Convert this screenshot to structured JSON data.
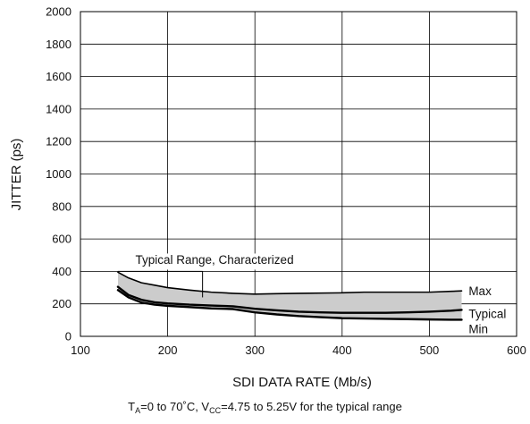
{
  "chart_data": {
    "type": "line",
    "xlabel": "SDI DATA RATE (Mb/s)",
    "ylabel": "JITTER (ps)",
    "xlim": [
      100,
      600
    ],
    "ylim": [
      0,
      2000
    ],
    "x_ticks": [
      "100",
      "200",
      "300",
      "400",
      "500",
      "600"
    ],
    "y_ticks": [
      "0",
      "200",
      "400",
      "600",
      "800",
      "1000",
      "1200",
      "1400",
      "1600",
      "1800",
      "2000"
    ],
    "grid": true,
    "band_annotation": "Typical Range, Characterized",
    "band_fill": "#cccccc",
    "series": [
      {
        "name": "Max",
        "x": [
          143,
          155,
          170,
          185,
          200,
          225,
          250,
          275,
          300,
          325,
          350,
          400,
          425,
          450,
          475,
          500,
          525,
          537
        ],
        "y": [
          395,
          360,
          330,
          315,
          300,
          285,
          272,
          265,
          260,
          263,
          265,
          268,
          272,
          272,
          272,
          272,
          277,
          280
        ]
      },
      {
        "name": "Typical",
        "x": [
          143,
          155,
          170,
          185,
          200,
          225,
          250,
          275,
          300,
          325,
          350,
          375,
          400,
          425,
          450,
          475,
          500,
          525,
          537
        ],
        "y": [
          305,
          255,
          225,
          210,
          203,
          195,
          190,
          185,
          170,
          160,
          152,
          148,
          145,
          145,
          145,
          148,
          152,
          158,
          163
        ]
      },
      {
        "name": "Min",
        "x": [
          143,
          155,
          170,
          185,
          200,
          225,
          250,
          275,
          300,
          325,
          350,
          375,
          400,
          425,
          450,
          475,
          500,
          525,
          537
        ],
        "y": [
          285,
          240,
          208,
          195,
          188,
          180,
          172,
          168,
          148,
          135,
          125,
          118,
          112,
          110,
          108,
          106,
          104,
          102,
          102
        ]
      }
    ],
    "series_labels": [
      "Max",
      "Typical",
      "Min"
    ]
  },
  "footnote": {
    "ta_sym": "T",
    "ta_sub": "A",
    "mid": "=0 to 70˚C, V",
    "vcc_sub": "CC",
    "tail": "=4.75 to 5.25V for the typical range"
  }
}
